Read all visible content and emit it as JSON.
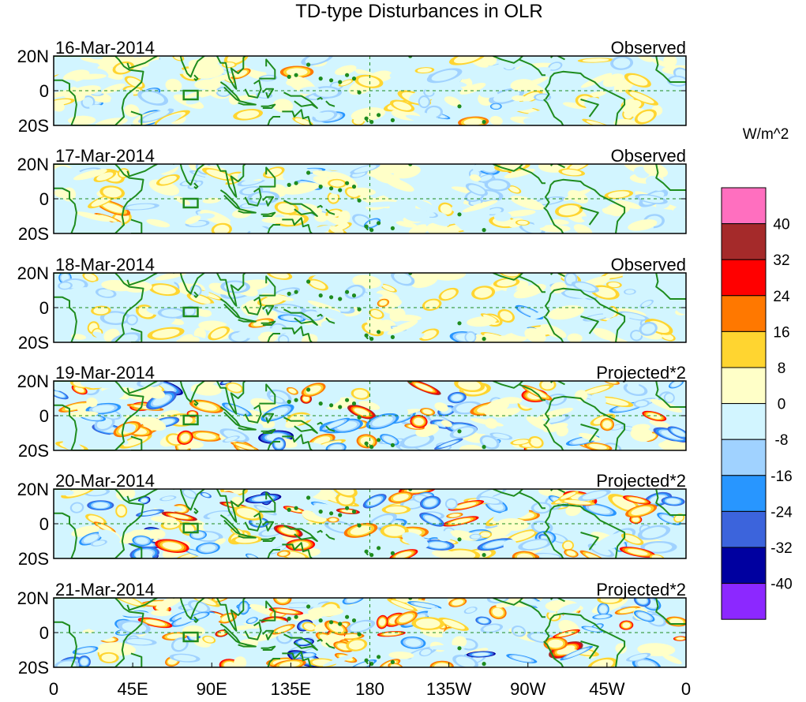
{
  "chart_data": {
    "type": "heatmap",
    "title": "TD-type Disturbances in OLR",
    "units_label": "W/m^2",
    "x_ticks": [
      "0",
      "45E",
      "90E",
      "135E",
      "180",
      "135W",
      "90W",
      "45W",
      "0"
    ],
    "y_ticks": [
      "20N",
      "0",
      "20S"
    ],
    "lon_range": [
      0,
      360
    ],
    "lat_range": [
      -20,
      20
    ],
    "colorbar": {
      "levels": [
        "40",
        "32",
        "24",
        "16",
        "8",
        "0",
        "-8",
        "-16",
        "-24",
        "-32",
        "-40"
      ],
      "colors": [
        "#ff6fbf",
        "#a52a2a",
        "#ff0000",
        "#ff7800",
        "#ffd530",
        "#ffffc8",
        "#d2f5ff",
        "#a0d2ff",
        "#2896ff",
        "#3c64dc",
        "#0000a0",
        "#8c28ff"
      ]
    },
    "panels": [
      {
        "date": "16-Mar-2014",
        "label": "Observed",
        "scale": 1
      },
      {
        "date": "17-Mar-2014",
        "label": "Observed",
        "scale": 1
      },
      {
        "date": "18-Mar-2014",
        "label": "Observed",
        "scale": 1
      },
      {
        "date": "19-Mar-2014",
        "label": "Projected*2",
        "scale": 2
      },
      {
        "date": "20-Mar-2014",
        "label": "Projected*2",
        "scale": 2
      },
      {
        "date": "21-Mar-2014",
        "label": "Projected*2",
        "scale": 2
      }
    ],
    "colors": {
      "coast": "#1e8c1e",
      "grid": "#1e8c1e",
      "frame": "#000000"
    }
  }
}
